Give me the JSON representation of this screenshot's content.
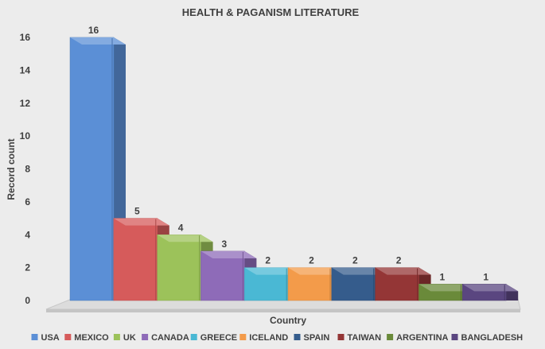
{
  "chart_data": {
    "type": "bar",
    "title": "HEALTH & PAGANISM LITERATURE",
    "xlabel": "Country",
    "ylabel": "Record count",
    "ylim": [
      0,
      16
    ],
    "yticks": [
      0,
      2,
      4,
      6,
      8,
      10,
      12,
      14,
      16
    ],
    "categories": [
      "USA",
      "MEXICO",
      "UK",
      "CANADA",
      "GREECE",
      "ICELAND",
      "SPAIN",
      "TAIWAN",
      "ARGENTINA",
      "BANGLADESH"
    ],
    "values": [
      16,
      5,
      4,
      3,
      2,
      2,
      2,
      2,
      1,
      1
    ],
    "colors": [
      "#5b8fd6",
      "#d65b5b",
      "#9cc25a",
      "#8e6bb8",
      "#4ab8d4",
      "#f39b4a",
      "#355c8c",
      "#943636",
      "#6a8a3a",
      "#5a4680"
    ],
    "style": "3d-column",
    "grid": false,
    "legend_position": "bottom",
    "data_labels": true
  }
}
